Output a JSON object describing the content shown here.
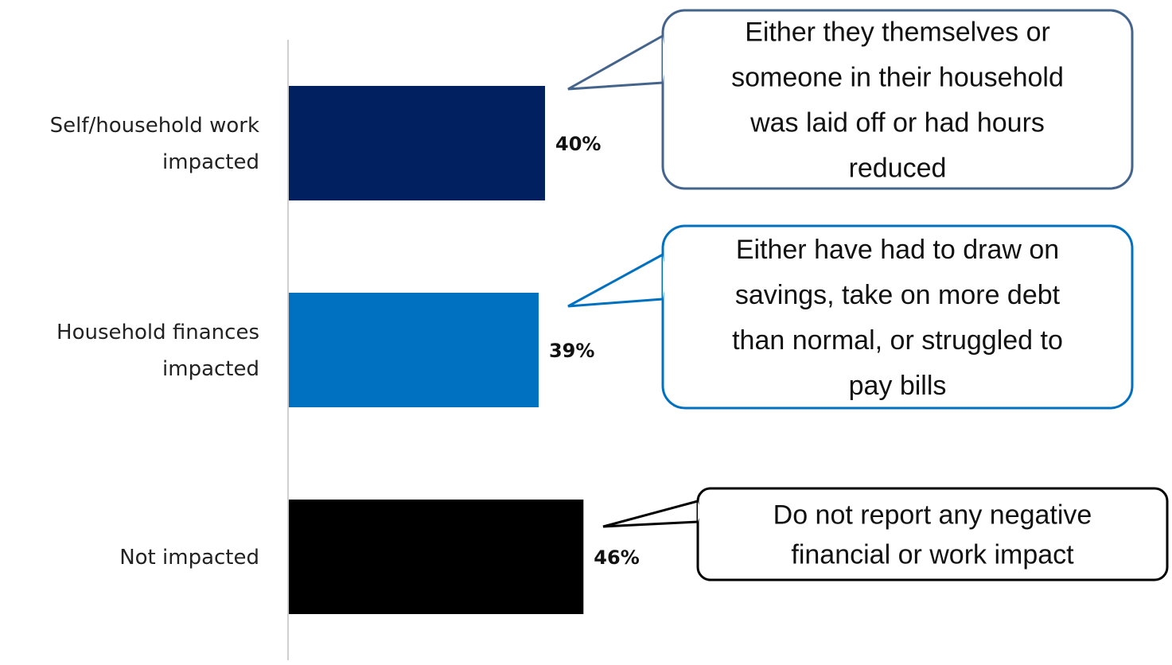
{
  "chart_data": {
    "type": "bar",
    "orientation": "horizontal",
    "categories": [
      [
        "Self/household work",
        "impacted"
      ],
      [
        "Household finances",
        "impacted"
      ],
      [
        "Not impacted"
      ]
    ],
    "values": [
      40,
      39,
      46
    ],
    "value_labels": [
      "40%",
      "39%",
      "46%"
    ],
    "colors": [
      "#002060",
      "#0070C0",
      "#000000"
    ],
    "xlim": [
      0,
      100
    ],
    "grid": false,
    "legend": "none",
    "title": "",
    "xlabel": "",
    "ylabel": ""
  },
  "callouts": [
    {
      "lines": [
        "Either they themselves or",
        "someone in their household",
        "was laid off or had hours",
        "reduced"
      ],
      "border_color": "#44648C"
    },
    {
      "lines": [
        "Either have had to draw on",
        "savings, take on more debt",
        "than normal, or struggled to",
        "pay bills"
      ],
      "border_color": "#0070C0"
    },
    {
      "lines": [
        "Do not report any negative",
        "financial or work impact"
      ],
      "border_color": "#000000"
    }
  ]
}
